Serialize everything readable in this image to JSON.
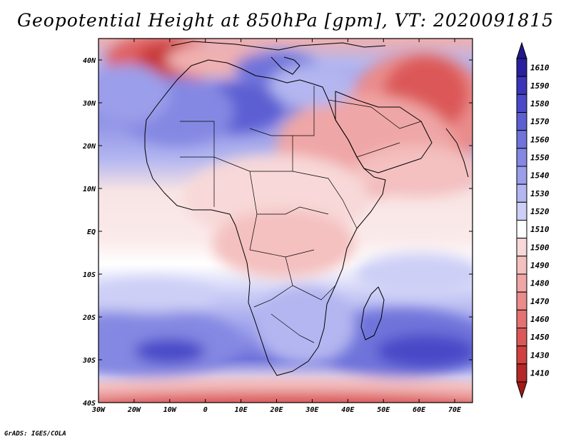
{
  "title": "Geopotential Height at 850hPa [gpm], VT: 2020091815",
  "credit": "GrADS: IGES/COLA",
  "map": {
    "lon_range": [
      -30,
      75
    ],
    "lat_range": [
      -40,
      45
    ],
    "x_ticks": [
      {
        "lon": -30,
        "label": "30W"
      },
      {
        "lon": -20,
        "label": "20W"
      },
      {
        "lon": -10,
        "label": "10W"
      },
      {
        "lon": 0,
        "label": "0"
      },
      {
        "lon": 10,
        "label": "10E"
      },
      {
        "lon": 20,
        "label": "20E"
      },
      {
        "lon": 30,
        "label": "30E"
      },
      {
        "lon": 40,
        "label": "40E"
      },
      {
        "lon": 50,
        "label": "50E"
      },
      {
        "lon": 60,
        "label": "60E"
      },
      {
        "lon": 70,
        "label": "70E"
      }
    ],
    "y_ticks": [
      {
        "lat": 40,
        "label": "40N"
      },
      {
        "lat": 30,
        "label": "30N"
      },
      {
        "lat": 20,
        "label": "20N"
      },
      {
        "lat": 10,
        "label": "10N"
      },
      {
        "lat": 0,
        "label": "EQ"
      },
      {
        "lat": -10,
        "label": "10S"
      },
      {
        "lat": -20,
        "label": "20S"
      },
      {
        "lat": -30,
        "label": "30S"
      },
      {
        "lat": -40,
        "label": "40S"
      }
    ]
  },
  "colorbar": {
    "levels": [
      {
        "label": "1610",
        "color": "#2a1f9e"
      },
      {
        "label": "1590",
        "color": "#3a35b8"
      },
      {
        "label": "1580",
        "color": "#4a4ac8"
      },
      {
        "label": "1570",
        "color": "#5c5fd2"
      },
      {
        "label": "1560",
        "color": "#7073da"
      },
      {
        "label": "1550",
        "color": "#8588e2"
      },
      {
        "label": "1540",
        "color": "#9b9eea"
      },
      {
        "label": "1530",
        "color": "#b3b6f0"
      },
      {
        "label": "1520",
        "color": "#cdcff6"
      },
      {
        "label": "1510",
        "color": "#ffffff"
      },
      {
        "label": "1500",
        "color": "#f8d8d8"
      },
      {
        "label": "1490",
        "color": "#f4c0c0"
      },
      {
        "label": "1480",
        "color": "#efa6a6"
      },
      {
        "label": "1470",
        "color": "#ea8c8c"
      },
      {
        "label": "1460",
        "color": "#e47272"
      },
      {
        "label": "1450",
        "color": "#dc5858"
      },
      {
        "label": "1430",
        "color": "#d04040"
      },
      {
        "label": "1410",
        "color": "#b52828"
      }
    ],
    "top_color": "#22188a",
    "bottom_color": "#a01818"
  },
  "fields": [
    {
      "lon": -12,
      "lat": 40,
      "rx": 16,
      "ry": 6,
      "color": "#e06060"
    },
    {
      "lon": -10,
      "lat": 40,
      "rx": 9,
      "ry": 4,
      "color": "#c83838"
    },
    {
      "lon": 5,
      "lat": 40,
      "rx": 16,
      "ry": 4,
      "color": "#f0b0b0"
    },
    {
      "lon": 60,
      "lat": 28,
      "rx": 20,
      "ry": 14,
      "color": "#ea8c8c"
    },
    {
      "lon": 62,
      "lat": 32,
      "rx": 12,
      "ry": 9,
      "color": "#dc5858"
    },
    {
      "lon": 45,
      "lat": 20,
      "rx": 25,
      "ry": 12,
      "color": "#efa6a6"
    },
    {
      "lon": 60,
      "lat": 14,
      "rx": 18,
      "ry": 6,
      "color": "#f4c0c0"
    },
    {
      "lon": 20,
      "lat": 8,
      "rx": 26,
      "ry": 10,
      "color": "#f8d8d8"
    },
    {
      "lon": 22,
      "lat": -3,
      "rx": 20,
      "ry": 8,
      "color": "#f4c0c0"
    },
    {
      "lon": 8,
      "lat": 29,
      "rx": 14,
      "ry": 6,
      "color": "#5c5fd2"
    },
    {
      "lon": -8,
      "lat": 28,
      "rx": 16,
      "ry": 8,
      "color": "#8588e2"
    },
    {
      "lon": -22,
      "lat": 32,
      "rx": 12,
      "ry": 7,
      "color": "#9b9eea"
    },
    {
      "lon": 20,
      "lat": 38,
      "rx": 12,
      "ry": 4,
      "color": "#7073da"
    },
    {
      "lon": 30,
      "lat": 34,
      "rx": 12,
      "ry": 5,
      "color": "#b3b6f0"
    },
    {
      "lon": -15,
      "lat": -26,
      "rx": 25,
      "ry": 8,
      "color": "#8588e2"
    },
    {
      "lon": -10,
      "lat": -28,
      "rx": 10,
      "ry": 3,
      "color": "#4a4ac8"
    },
    {
      "lon": 55,
      "lat": -26,
      "rx": 25,
      "ry": 8,
      "color": "#7073da"
    },
    {
      "lon": 62,
      "lat": -28,
      "rx": 14,
      "ry": 4,
      "color": "#4a4ac8"
    },
    {
      "lon": 28,
      "lat": -22,
      "rx": 14,
      "ry": 9,
      "color": "#b3b6f0"
    },
    {
      "lon": -15,
      "lat": -15,
      "rx": 18,
      "ry": 4,
      "color": "#cdcff6"
    },
    {
      "lon": 60,
      "lat": -10,
      "rx": 18,
      "ry": 5,
      "color": "#cdcff6"
    },
    {
      "lon": 22,
      "lat": -38,
      "rx": 60,
      "ry": 4,
      "color": "#f4c0c0"
    },
    {
      "lon": 22,
      "lat": -40,
      "rx": 60,
      "ry": 2.5,
      "color": "#dc5858"
    }
  ]
}
